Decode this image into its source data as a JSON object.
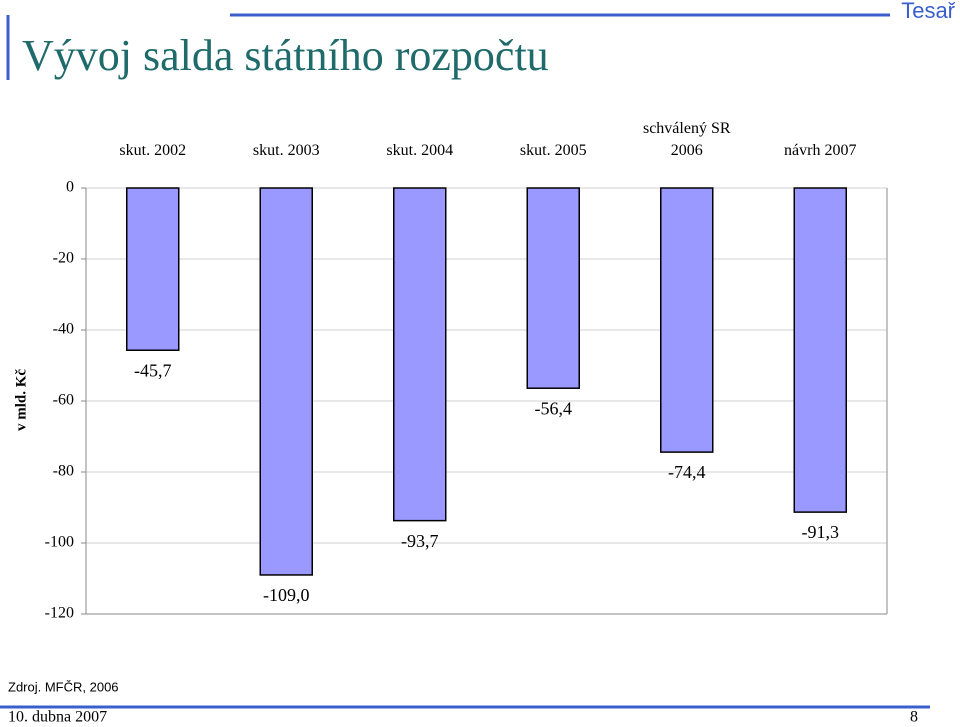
{
  "chart_data": {
    "type": "bar",
    "title": "Vývoj salda státního rozpočtu",
    "y_label": "v mld. Kč",
    "categories": [
      "skut. 2002",
      "skut. 2003",
      "skut. 2004",
      "skut. 2005",
      "schválený SR 2006",
      "návrh 2007"
    ],
    "values": [
      -45.7,
      -109.0,
      -93.7,
      -56.4,
      -74.4,
      -91.3
    ],
    "value_labels": [
      "-45,7",
      "-109,0",
      "-93,7",
      "-56,4",
      "-74,4",
      "-91,3"
    ],
    "color": "#9999ff",
    "ylim": [
      -120,
      0
    ],
    "yticks": [
      0,
      -20,
      -40,
      -60,
      -80,
      -100,
      -120
    ],
    "grid": true
  },
  "header": {
    "author": "Tesař"
  },
  "source": "Zdroj. MFČR, 2006",
  "footer": {
    "date": "10. dubna 2007",
    "page": "8"
  }
}
